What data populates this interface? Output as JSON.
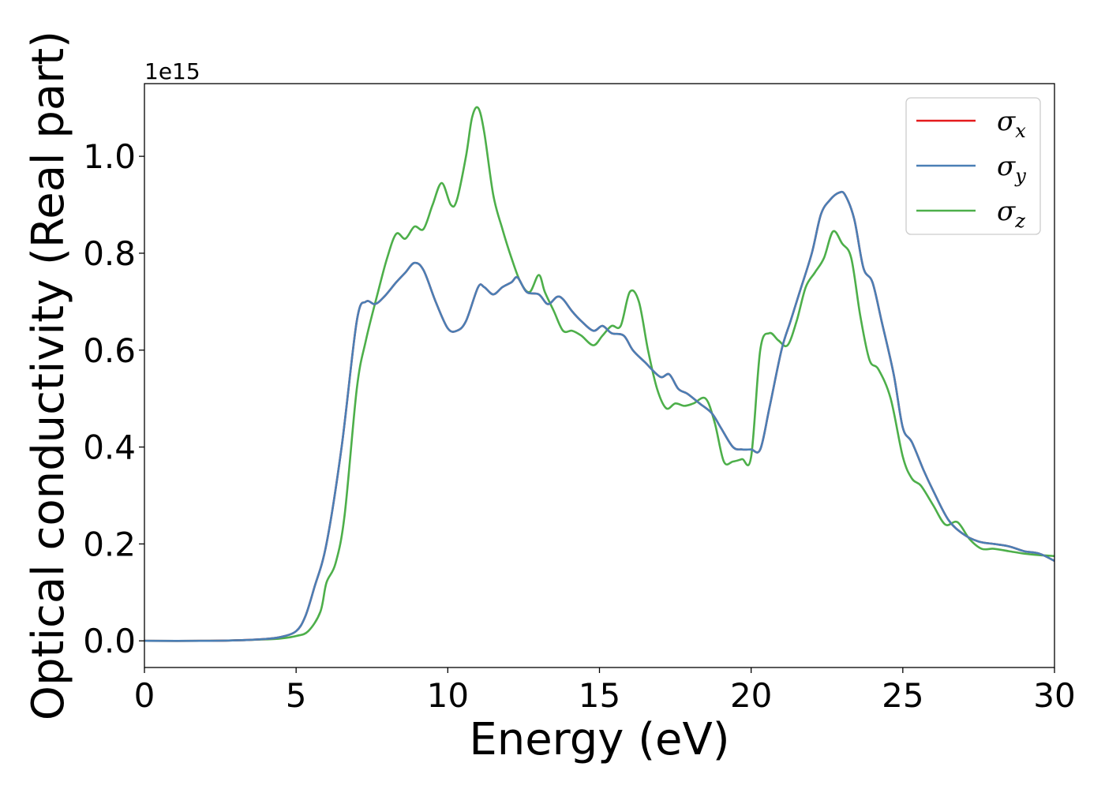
{
  "chart_data": {
    "type": "line",
    "xlabel": "Energy (eV)",
    "ylabel": "Optical conductivity (Real part)",
    "y_offset_label": "1e15",
    "xlim": [
      0,
      30
    ],
    "ylim": [
      -0.055,
      1.15
    ],
    "x_ticks": [
      0,
      5,
      10,
      15,
      20,
      25,
      30
    ],
    "x_tick_labels": [
      "0",
      "5",
      "10",
      "15",
      "20",
      "25",
      "30"
    ],
    "y_ticks": [
      0.0,
      0.2,
      0.4,
      0.6,
      0.8,
      1.0
    ],
    "y_tick_labels": [
      "0.0",
      "0.2",
      "0.4",
      "0.6",
      "0.8",
      "1.0"
    ],
    "grid": false,
    "legend_position": "top-right",
    "series": [
      {
        "name": "σx",
        "legend_base": "σ",
        "legend_sub": "x",
        "color": "#e41a1c",
        "x": [
          0,
          2,
          3,
          4,
          4.5,
          5,
          5.3,
          5.6,
          6,
          6.5,
          7,
          7.3,
          7.6,
          7.9,
          8.3,
          8.6,
          8.9,
          9.2,
          9.6,
          10,
          10.3,
          10.6,
          11,
          11.2,
          11.5,
          11.8,
          12.1,
          12.3,
          12.6,
          13,
          13.3,
          13.6,
          13.8,
          14.1,
          14.4,
          14.8,
          15.1,
          15.4,
          15.8,
          16.1,
          16.5,
          17,
          17.3,
          17.6,
          17.9,
          18.3,
          18.7,
          19,
          19.4,
          19.7,
          20,
          20.3,
          20.6,
          21,
          21.3,
          21.6,
          22,
          22.3,
          22.6,
          22.9,
          23.1,
          23.4,
          23.7,
          24,
          24.3,
          24.7,
          25,
          25.3,
          25.7,
          26,
          26.5,
          27,
          27.5,
          28,
          28.5,
          29,
          29.5,
          30
        ],
        "values": [
          0,
          0,
          0.001,
          0.004,
          0.008,
          0.02,
          0.05,
          0.11,
          0.2,
          0.4,
          0.66,
          0.7,
          0.695,
          0.71,
          0.74,
          0.76,
          0.78,
          0.765,
          0.7,
          0.645,
          0.64,
          0.66,
          0.73,
          0.73,
          0.715,
          0.73,
          0.74,
          0.75,
          0.72,
          0.715,
          0.695,
          0.71,
          0.705,
          0.68,
          0.66,
          0.64,
          0.65,
          0.635,
          0.63,
          0.6,
          0.575,
          0.545,
          0.55,
          0.52,
          0.51,
          0.49,
          0.47,
          0.44,
          0.4,
          0.395,
          0.395,
          0.395,
          0.48,
          0.6,
          0.66,
          0.72,
          0.8,
          0.88,
          0.91,
          0.925,
          0.92,
          0.87,
          0.77,
          0.74,
          0.66,
          0.55,
          0.44,
          0.41,
          0.35,
          0.31,
          0.25,
          0.22,
          0.205,
          0.2,
          0.195,
          0.185,
          0.18,
          0.165
        ]
      },
      {
        "name": "σy",
        "legend_base": "σ",
        "legend_sub": "y",
        "color": "#4a7fb5",
        "x": [
          0,
          2,
          3,
          4,
          4.5,
          5,
          5.3,
          5.6,
          6,
          6.5,
          7,
          7.3,
          7.6,
          7.9,
          8.3,
          8.6,
          8.9,
          9.2,
          9.6,
          10,
          10.3,
          10.6,
          11,
          11.2,
          11.5,
          11.8,
          12.1,
          12.3,
          12.6,
          13,
          13.3,
          13.6,
          13.8,
          14.1,
          14.4,
          14.8,
          15.1,
          15.4,
          15.8,
          16.1,
          16.5,
          17,
          17.3,
          17.6,
          17.9,
          18.3,
          18.7,
          19,
          19.4,
          19.7,
          20,
          20.3,
          20.6,
          21,
          21.3,
          21.6,
          22,
          22.3,
          22.6,
          22.9,
          23.1,
          23.4,
          23.7,
          24,
          24.3,
          24.7,
          25,
          25.3,
          25.7,
          26,
          26.5,
          27,
          27.5,
          28,
          28.5,
          29,
          29.5,
          30
        ],
        "values": [
          0,
          0,
          0.001,
          0.004,
          0.008,
          0.02,
          0.05,
          0.11,
          0.2,
          0.4,
          0.66,
          0.7,
          0.695,
          0.71,
          0.74,
          0.76,
          0.78,
          0.765,
          0.7,
          0.645,
          0.64,
          0.66,
          0.73,
          0.73,
          0.715,
          0.73,
          0.74,
          0.75,
          0.72,
          0.715,
          0.695,
          0.71,
          0.705,
          0.68,
          0.66,
          0.64,
          0.65,
          0.635,
          0.63,
          0.6,
          0.575,
          0.545,
          0.55,
          0.52,
          0.51,
          0.49,
          0.47,
          0.44,
          0.4,
          0.395,
          0.395,
          0.395,
          0.48,
          0.6,
          0.66,
          0.72,
          0.8,
          0.88,
          0.91,
          0.925,
          0.92,
          0.87,
          0.77,
          0.74,
          0.66,
          0.55,
          0.44,
          0.41,
          0.35,
          0.31,
          0.25,
          0.22,
          0.205,
          0.2,
          0.195,
          0.185,
          0.18,
          0.165
        ]
      },
      {
        "name": "σz",
        "legend_base": "σ",
        "legend_sub": "z",
        "color": "#4daf4a",
        "x": [
          0,
          2,
          3,
          4,
          4.5,
          5,
          5.4,
          5.8,
          6,
          6.3,
          6.6,
          7,
          7.3,
          7.7,
          8,
          8.3,
          8.6,
          8.9,
          9.2,
          9.5,
          9.8,
          10.1,
          10.3,
          10.6,
          10.8,
          11,
          11.2,
          11.5,
          11.8,
          12.1,
          12.4,
          12.7,
          13,
          13.2,
          13.5,
          13.8,
          14.1,
          14.4,
          14.8,
          15.1,
          15.4,
          15.7,
          16,
          16.3,
          16.6,
          16.9,
          17.2,
          17.5,
          17.8,
          18.1,
          18.5,
          18.8,
          19.1,
          19.4,
          19.7,
          20,
          20.3,
          20.6,
          20.9,
          21.2,
          21.5,
          21.8,
          22.1,
          22.4,
          22.7,
          23,
          23.3,
          23.6,
          23.9,
          24.2,
          24.6,
          25,
          25.3,
          25.6,
          26,
          26.4,
          26.8,
          27.2,
          27.6,
          28,
          28.5,
          29,
          29.5,
          30
        ],
        "values": [
          0,
          0,
          0.001,
          0.003,
          0.005,
          0.01,
          0.02,
          0.06,
          0.12,
          0.16,
          0.26,
          0.52,
          0.62,
          0.72,
          0.79,
          0.84,
          0.83,
          0.855,
          0.85,
          0.9,
          0.945,
          0.9,
          0.91,
          1.0,
          1.08,
          1.1,
          1.05,
          0.92,
          0.85,
          0.79,
          0.74,
          0.72,
          0.755,
          0.72,
          0.68,
          0.64,
          0.64,
          0.63,
          0.61,
          0.63,
          0.65,
          0.65,
          0.72,
          0.7,
          0.6,
          0.52,
          0.48,
          0.49,
          0.485,
          0.49,
          0.5,
          0.45,
          0.37,
          0.37,
          0.375,
          0.38,
          0.6,
          0.635,
          0.62,
          0.61,
          0.66,
          0.73,
          0.76,
          0.79,
          0.845,
          0.82,
          0.79,
          0.67,
          0.58,
          0.56,
          0.5,
          0.38,
          0.335,
          0.32,
          0.28,
          0.24,
          0.245,
          0.21,
          0.19,
          0.19,
          0.185,
          0.18,
          0.177,
          0.175
        ]
      }
    ]
  }
}
